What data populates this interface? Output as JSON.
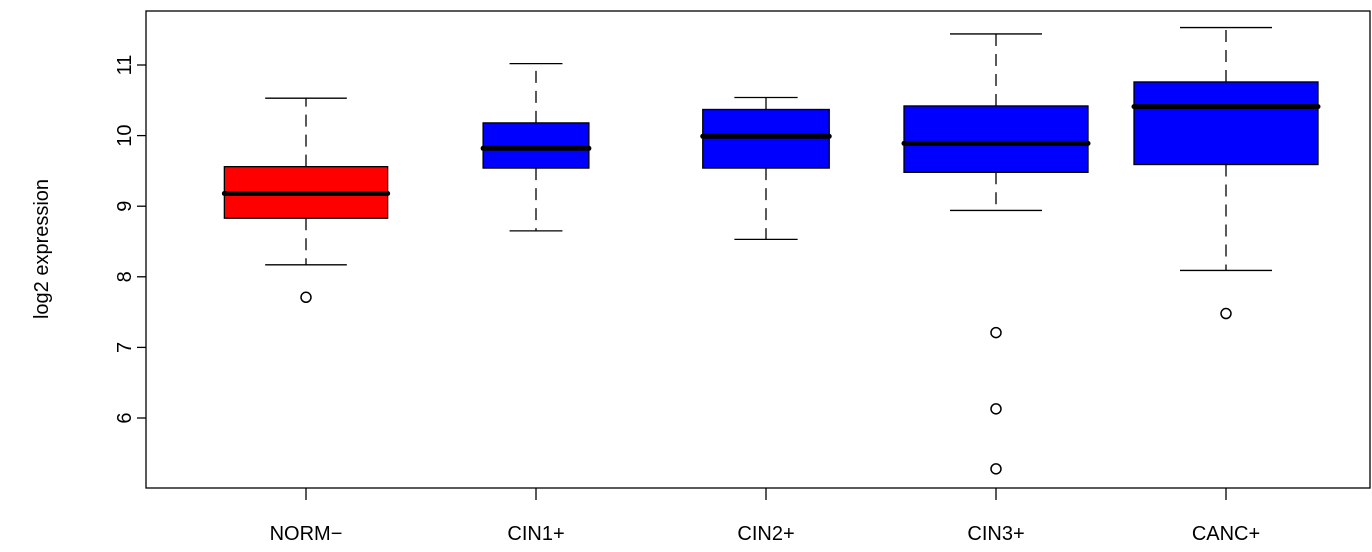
{
  "chart_data": {
    "type": "boxplot",
    "ylabel": "log2 expression",
    "ylim": [
      5.0,
      11.8
    ],
    "yticks": [
      6,
      7,
      8,
      9,
      10,
      11
    ],
    "ytick_labels": [
      "6",
      "7",
      "8",
      "9",
      "10",
      "11"
    ],
    "categories": [
      "NORM−",
      "CIN1+",
      "CIN2+",
      "CIN3+",
      "CANC+"
    ],
    "box_widths": [
      0.71,
      0.46,
      0.55,
      0.8,
      0.8
    ],
    "boxes": [
      {
        "whisker_low": 8.17,
        "q1": 8.83,
        "median": 9.18,
        "q3": 9.56,
        "whisker_high": 10.53,
        "outliers": [
          7.71
        ],
        "color": "#ff0000"
      },
      {
        "whisker_low": 8.65,
        "q1": 9.54,
        "median": 9.82,
        "q3": 10.18,
        "whisker_high": 11.02,
        "outliers": [],
        "color": "#0000ff"
      },
      {
        "whisker_low": 8.53,
        "q1": 9.54,
        "median": 9.99,
        "q3": 10.37,
        "whisker_high": 10.54,
        "outliers": [],
        "color": "#0000ff"
      },
      {
        "whisker_low": 8.94,
        "q1": 9.48,
        "median": 9.89,
        "q3": 10.42,
        "whisker_high": 11.44,
        "outliers": [
          7.21,
          6.13,
          5.28
        ],
        "color": "#0000ff"
      },
      {
        "whisker_low": 8.09,
        "q1": 9.59,
        "median": 10.41,
        "q3": 10.76,
        "whisker_high": 11.53,
        "outliers": [
          7.48
        ],
        "color": "#0000ff"
      }
    ],
    "grid": false,
    "legend": "none"
  }
}
